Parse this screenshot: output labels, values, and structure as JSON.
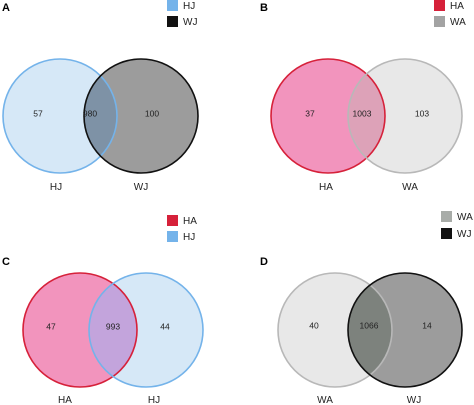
{
  "panels": [
    {
      "letter": "A",
      "legend": [
        {
          "label": "HJ",
          "color": "#74b3ea"
        },
        {
          "label": "WJ",
          "color": "#111111"
        }
      ],
      "sets": [
        {
          "label": "HJ",
          "fill": "#d6e8f7",
          "stroke": "#74b3ea"
        },
        {
          "label": "WJ",
          "fill": "#9c9c9c",
          "stroke": "#111111"
        }
      ],
      "overlap_fill": "#7e92a6",
      "counts": {
        "left_only": "57",
        "both": "980",
        "right_only": "100"
      }
    },
    {
      "letter": "B",
      "legend": [
        {
          "label": "HA",
          "color": "#d6213a"
        },
        {
          "label": "WA",
          "color": "#a3a3a3"
        }
      ],
      "sets": [
        {
          "label": "HA",
          "fill": "#f294bd",
          "stroke": "#d6213a"
        },
        {
          "label": "WA",
          "fill": "#e8e8e8",
          "stroke": "#b8b8b8"
        }
      ],
      "overlap_fill": "#dda2b8",
      "counts": {
        "left_only": "37",
        "both": "1003",
        "right_only": "103"
      }
    },
    {
      "letter": "C",
      "legend": [
        {
          "label": "HA",
          "color": "#d6213a"
        },
        {
          "label": "HJ",
          "color": "#74b3ea"
        }
      ],
      "sets": [
        {
          "label": "HA",
          "fill": "#f294bd",
          "stroke": "#d6213a"
        },
        {
          "label": "HJ",
          "fill": "#d6e8f7",
          "stroke": "#74b3ea"
        }
      ],
      "overlap_fill": "#c3a4dc",
      "counts": {
        "left_only": "47",
        "both": "993",
        "right_only": "44"
      }
    },
    {
      "letter": "D",
      "legend": [
        {
          "label": "WA",
          "color": "#a8aca8"
        },
        {
          "label": "WJ",
          "color": "#111111"
        }
      ],
      "sets": [
        {
          "label": "WA",
          "fill": "#e8e8e8",
          "stroke": "#b8b8b8"
        },
        {
          "label": "WJ",
          "fill": "#9c9c9c",
          "stroke": "#111111"
        }
      ],
      "overlap_fill": "#7d827d",
      "counts": {
        "left_only": "40",
        "both": "1066",
        "right_only": "14"
      }
    }
  ]
}
